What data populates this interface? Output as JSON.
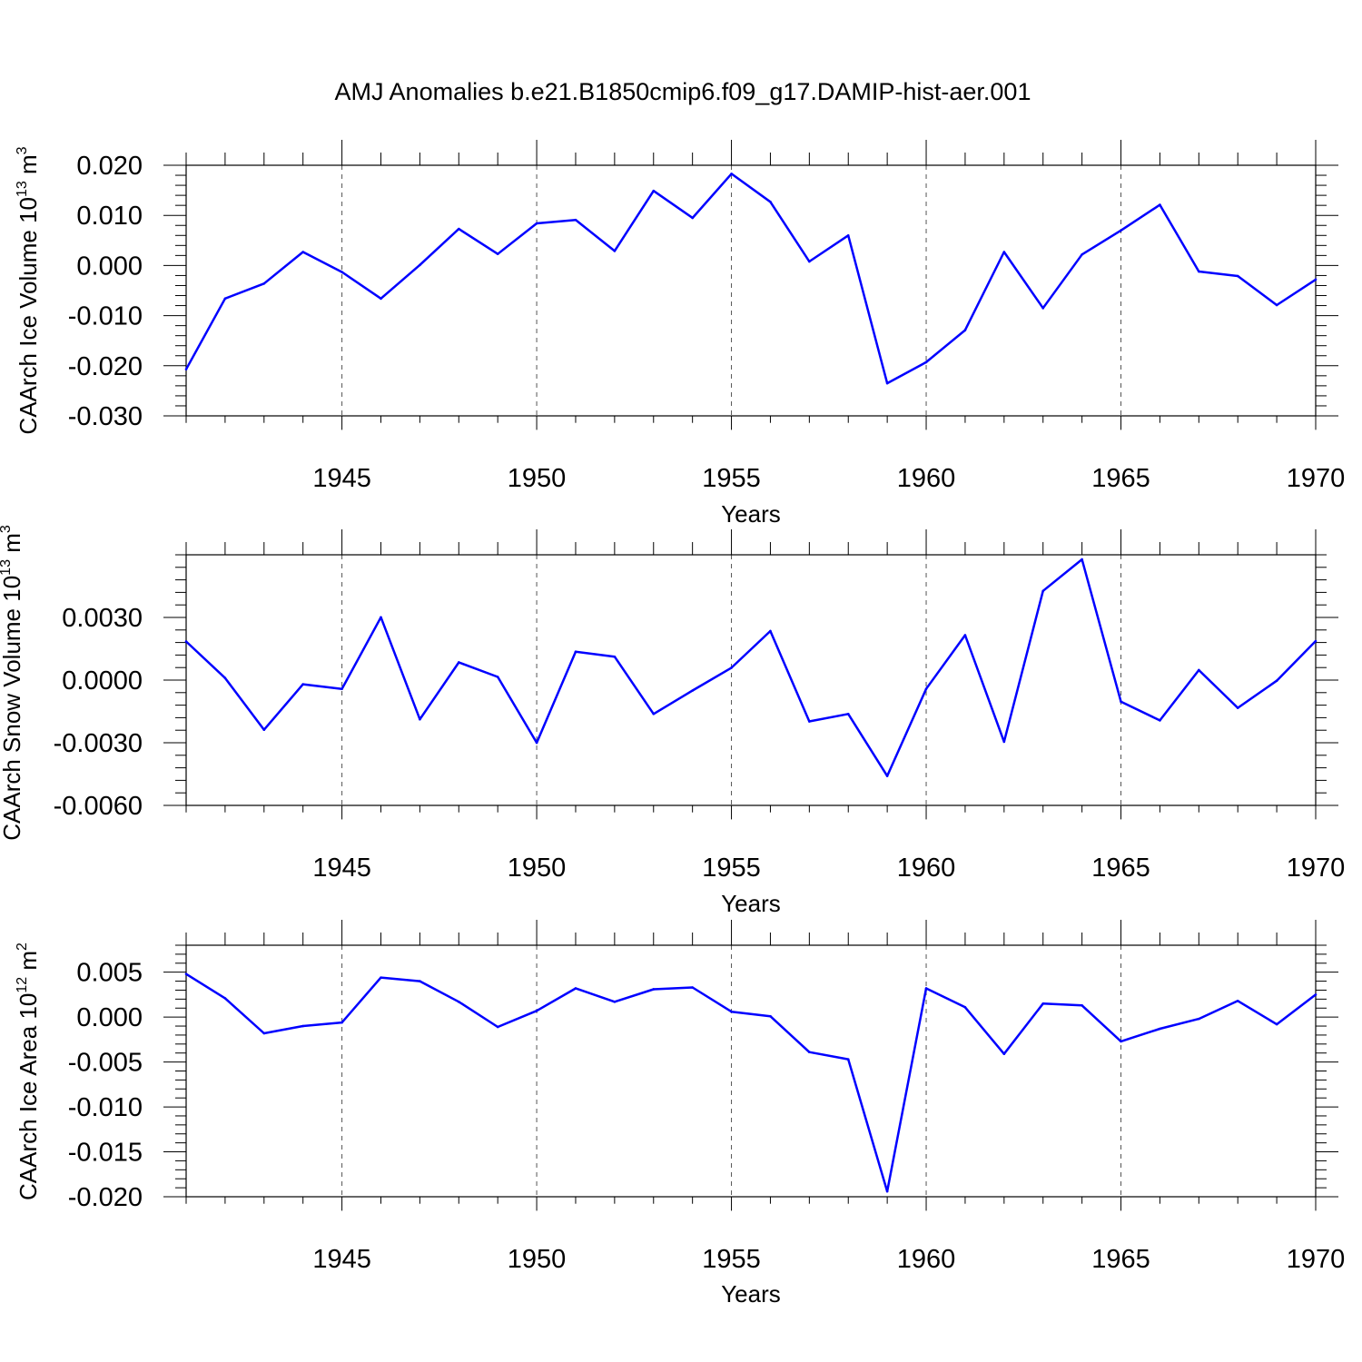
{
  "title": "AMJ Anomalies b.e21.B1850cmip6.f09_g17.DAMIP-hist-aer.001",
  "chart_data": [
    {
      "type": "line",
      "name": "ice-volume",
      "ylabel": {
        "prefix": "CAArch Ice Volume 10",
        "exp": "13",
        "unit": " m",
        "unit_exp": "3"
      },
      "xlabel": "Years",
      "xlim": [
        1941,
        1970
      ],
      "ylim": [
        -0.03,
        0.02
      ],
      "yticks": [
        -0.03,
        -0.02,
        -0.01,
        0.0,
        0.01,
        0.02
      ],
      "ytick_labels": [
        "-0.030",
        "-0.020",
        "-0.010",
        "0.000",
        "0.010",
        "0.020"
      ],
      "xticks": [
        1945,
        1950,
        1955,
        1960,
        1965,
        1970
      ],
      "xtick_labels": [
        "1945",
        "1950",
        "1955",
        "1960",
        "1965",
        "1970"
      ],
      "grid": "vertical dashed at major x ticks",
      "line_color": "#0000ff",
      "x": [
        1941,
        1942,
        1943,
        1944,
        1945,
        1946,
        1947,
        1948,
        1949,
        1950,
        1951,
        1952,
        1953,
        1954,
        1955,
        1956,
        1957,
        1958,
        1959,
        1960,
        1961,
        1962,
        1963,
        1964,
        1965,
        1966,
        1967,
        1968,
        1969,
        1970
      ],
      "values": [
        -0.0207,
        -0.0066,
        -0.0036,
        0.0027,
        -0.0013,
        -0.0066,
        0.0001,
        0.0073,
        0.0023,
        0.0084,
        0.0091,
        0.0029,
        0.0149,
        0.0095,
        0.0183,
        0.0127,
        0.0008,
        0.006,
        -0.0235,
        -0.0193,
        -0.0129,
        0.0027,
        -0.0085,
        0.0022,
        0.007,
        0.0121,
        -0.0012,
        -0.0021,
        -0.0079,
        -0.0028
      ]
    },
    {
      "type": "line",
      "name": "snow-volume",
      "ylabel": {
        "prefix": "CAArch Snow Volume 10",
        "exp": "13",
        "unit": " m",
        "unit_exp": "3"
      },
      "xlabel": "Years",
      "xlim": [
        1941,
        1970
      ],
      "ylim": [
        -0.006,
        0.006
      ],
      "yticks": [
        -0.006,
        -0.003,
        0.0,
        0.003
      ],
      "ytick_labels": [
        "-0.0060",
        "-0.0030",
        "0.0000",
        "0.0030"
      ],
      "xticks": [
        1945,
        1950,
        1955,
        1960,
        1965,
        1970
      ],
      "xtick_labels": [
        "1945",
        "1950",
        "1955",
        "1960",
        "1965",
        "1970"
      ],
      "grid": "vertical dashed at major x ticks",
      "line_color": "#0000ff",
      "x": [
        1941,
        1942,
        1943,
        1944,
        1945,
        1946,
        1947,
        1948,
        1949,
        1950,
        1951,
        1952,
        1953,
        1954,
        1955,
        1956,
        1957,
        1958,
        1959,
        1960,
        1961,
        1962,
        1963,
        1964,
        1965,
        1966,
        1967,
        1968,
        1969,
        1970
      ],
      "values": [
        0.00185,
        0.0001,
        -0.00238,
        -0.0002,
        -0.00042,
        0.00301,
        -0.00188,
        0.00085,
        0.00015,
        -0.003,
        0.00136,
        0.00112,
        -0.00162,
        -0.0005,
        0.00059,
        0.00235,
        -0.00198,
        -0.00162,
        -0.00459,
        -0.00042,
        0.00215,
        -0.00295,
        0.00427,
        0.00578,
        -0.00103,
        -0.00193,
        0.00048,
        -0.00133,
        -3e-05,
        0.00187
      ]
    },
    {
      "type": "line",
      "name": "ice-area",
      "ylabel": {
        "prefix": "CAArch Ice Area 10",
        "exp": "12",
        "unit": " m",
        "unit_exp": "2"
      },
      "xlabel": "Years",
      "xlim": [
        1941,
        1970
      ],
      "ylim": [
        -0.02,
        0.008
      ],
      "yticks": [
        -0.02,
        -0.015,
        -0.01,
        -0.005,
        0.0,
        0.005
      ],
      "ytick_labels": [
        "-0.020",
        "-0.015",
        "-0.010",
        "-0.005",
        "0.000",
        "0.005"
      ],
      "xticks": [
        1945,
        1950,
        1955,
        1960,
        1965,
        1970
      ],
      "xtick_labels": [
        "1945",
        "1950",
        "1955",
        "1960",
        "1965",
        "1970"
      ],
      "grid": "vertical dashed at major x ticks",
      "line_color": "#0000ff",
      "x": [
        1941,
        1942,
        1943,
        1944,
        1945,
        1946,
        1947,
        1948,
        1949,
        1950,
        1951,
        1952,
        1953,
        1954,
        1955,
        1956,
        1957,
        1958,
        1959,
        1960,
        1961,
        1962,
        1963,
        1964,
        1965,
        1966,
        1967,
        1968,
        1969,
        1970
      ],
      "values": [
        0.0048,
        0.0021,
        -0.0018,
        -0.001,
        -0.0006,
        0.0044,
        0.004,
        0.0017,
        -0.0011,
        0.0007,
        0.0032,
        0.0017,
        0.0031,
        0.0033,
        0.0006,
        0.0001,
        -0.0039,
        -0.0047,
        -0.0194,
        0.0032,
        0.0011,
        -0.0041,
        0.0015,
        0.0013,
        -0.0027,
        -0.0013,
        -0.0002,
        0.0018,
        -0.0008,
        0.0025
      ]
    }
  ]
}
